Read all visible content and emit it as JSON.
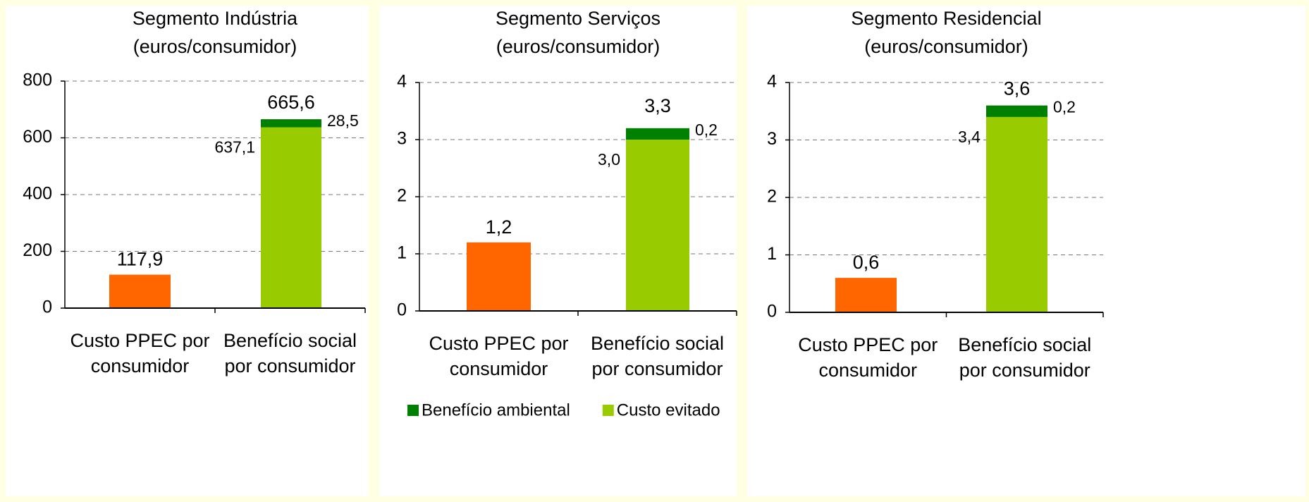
{
  "chart_data": [
    {
      "type": "bar",
      "stacked": true,
      "title": "Segmento Indústria",
      "subtitle": "(euros/consumidor)",
      "categories": [
        "Custo PPEC por consumidor",
        "Benefício social por consumidor"
      ],
      "series": [
        {
          "color": "#ff6600",
          "values": [
            117.9,
            null
          ],
          "value_labels": [
            "117,9",
            null
          ]
        },
        {
          "color": "#99cc00",
          "values": [
            null,
            637.1
          ],
          "value_labels": [
            null,
            "637,1"
          ]
        },
        {
          "color": "#008000",
          "values": [
            null,
            28.5
          ],
          "value_labels": [
            null,
            "28,5"
          ]
        }
      ],
      "totals": [
        null,
        665.6
      ],
      "total_labels": [
        null,
        "665,6"
      ],
      "ylim": [
        0,
        800
      ],
      "yticks": [
        0,
        200,
        400,
        600,
        800
      ],
      "grid": true
    },
    {
      "type": "bar",
      "stacked": true,
      "title": "Segmento Serviços",
      "subtitle": "(euros/consumidor)",
      "categories": [
        "Custo PPEC por consumidor",
        "Benefício social por consumidor"
      ],
      "series": [
        {
          "color": "#ff6600",
          "values": [
            1.2,
            null
          ],
          "value_labels": [
            "1,2",
            null
          ]
        },
        {
          "name": "Custo evitado",
          "color": "#99cc00",
          "values": [
            null,
            3.0
          ],
          "value_labels": [
            null,
            "3,0"
          ]
        },
        {
          "name": "Benefício ambiental",
          "color": "#008000",
          "values": [
            null,
            0.2
          ],
          "value_labels": [
            null,
            "0,2"
          ]
        }
      ],
      "totals": [
        null,
        3.3
      ],
      "total_labels": [
        null,
        "3,3"
      ],
      "ylim": [
        0,
        4
      ],
      "yticks": [
        0,
        1,
        2,
        3,
        4
      ],
      "grid": true,
      "legend": "bottom"
    },
    {
      "type": "bar",
      "stacked": true,
      "title": "Segmento Residencial",
      "subtitle": "(euros/consumidor)",
      "categories": [
        "Custo PPEC por consumidor",
        "Benefício social por consumidor"
      ],
      "series": [
        {
          "color": "#ff6600",
          "values": [
            0.6,
            null
          ],
          "value_labels": [
            "0,6",
            null
          ]
        },
        {
          "color": "#99cc00",
          "values": [
            null,
            3.4
          ],
          "value_labels": [
            null,
            "3,4"
          ]
        },
        {
          "color": "#008000",
          "values": [
            null,
            0.2
          ],
          "value_labels": [
            null,
            "0,2"
          ]
        }
      ],
      "totals": [
        null,
        3.6
      ],
      "total_labels": [
        null,
        "3,6"
      ],
      "ylim": [
        0,
        4
      ],
      "yticks": [
        0,
        1,
        2,
        3,
        4
      ],
      "grid": true
    }
  ]
}
